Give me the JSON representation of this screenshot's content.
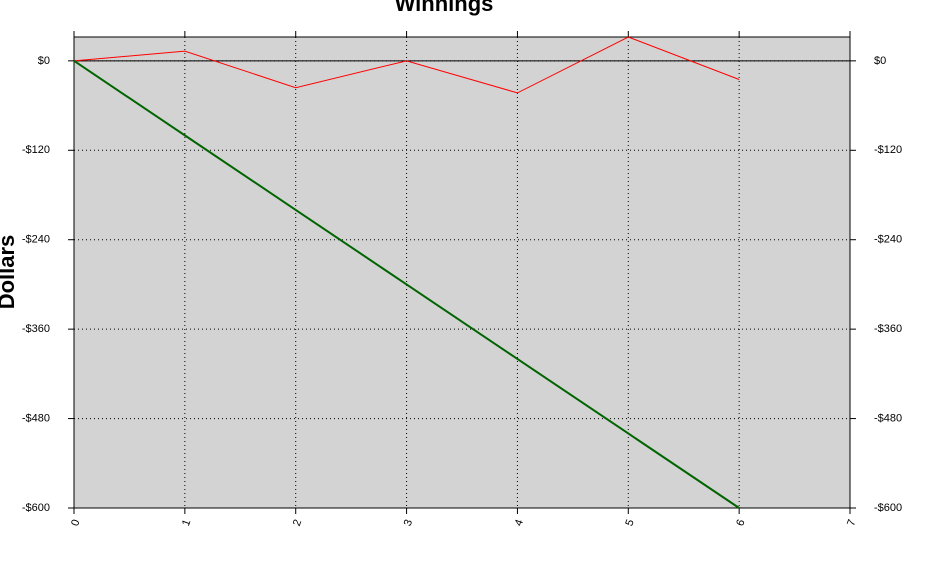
{
  "chart_data": {
    "type": "line",
    "title": "Winnings",
    "y_label": "Dollars",
    "x": [
      0,
      1,
      2,
      3,
      4,
      5,
      6
    ],
    "series": [
      {
        "color": "#ff0000",
        "width": 1,
        "values": [
          0,
          13,
          -36,
          0,
          -43,
          32,
          -25
        ]
      },
      {
        "color": "#006400",
        "width": 2,
        "values": [
          0,
          -100,
          -200,
          -300,
          -400,
          -500,
          -600
        ]
      }
    ],
    "xlim": [
      0,
      7
    ],
    "xticks": [
      0,
      1,
      2,
      3,
      4,
      5,
      6,
      7
    ],
    "ylim": [
      -600,
      32
    ],
    "yticks": [
      {
        "value": 0,
        "label": "$0"
      },
      {
        "value": -120,
        "label": "-$120"
      },
      {
        "value": -240,
        "label": "-$240"
      },
      {
        "value": -360,
        "label": "-$360"
      },
      {
        "value": -480,
        "label": "-$480"
      },
      {
        "value": -600,
        "label": "-$600"
      }
    ],
    "grid": true
  }
}
